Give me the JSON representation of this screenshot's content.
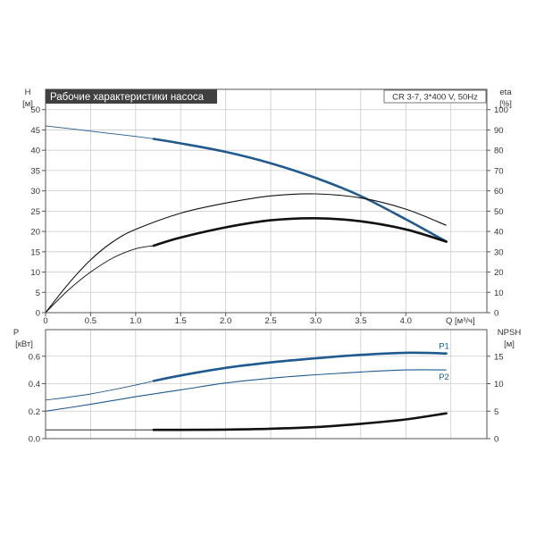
{
  "chart_data": [
    {
      "type": "line",
      "title": "Рабочие характеристики насоса",
      "subtitle": "CR 3-7, 3*400 V, 50Hz",
      "xlabel": "Q [м³/ч]",
      "ylabel": "H",
      "ylabel_unit": "[м]",
      "y2label": "eta",
      "y2label_unit": "[%]",
      "xlim": [
        0,
        4.5
      ],
      "ylim": [
        0,
        50
      ],
      "y2lim": [
        0,
        100
      ],
      "x_ticks": [
        "0",
        "0.5",
        "1.0",
        "1.5",
        "2.0",
        "2.5",
        "3.0",
        "3.5",
        "4.0"
      ],
      "y_ticks": [
        "0",
        "5",
        "10",
        "15",
        "20",
        "25",
        "30",
        "35",
        "40",
        "45",
        "50"
      ],
      "y2_ticks": [
        "0",
        "10",
        "20",
        "30",
        "40",
        "50",
        "60",
        "70",
        "80",
        "90",
        "100"
      ],
      "grid": true,
      "series": [
        {
          "id": "head",
          "axis": "left",
          "color": "#1f5b8f",
          "x": [
            0,
            0.5,
            1.0,
            1.2,
            1.5,
            2.0,
            2.5,
            3.0,
            3.5,
            4.0,
            4.45
          ],
          "y": [
            46.0,
            44.7,
            43.4,
            42.8,
            41.7,
            39.6,
            36.8,
            33.2,
            28.7,
            23.0,
            17.5
          ],
          "bold_from": 1.2
        },
        {
          "id": "eta-upper",
          "axis": "right",
          "color": "#111111",
          "x": [
            0,
            0.25,
            0.5,
            0.75,
            1.0,
            1.5,
            2.0,
            2.5,
            3.0,
            3.5,
            4.0,
            4.45
          ],
          "y": [
            0,
            14,
            26,
            35,
            41,
            49,
            54,
            57.5,
            58.5,
            56.5,
            51,
            43
          ]
        },
        {
          "id": "eta-lower",
          "axis": "right",
          "color": "#111111",
          "x": [
            0,
            0.25,
            0.5,
            0.75,
            1.0,
            1.2,
            1.5,
            2.0,
            2.5,
            3.0,
            3.5,
            4.0,
            4.45
          ],
          "y": [
            0,
            11,
            20,
            27,
            31.5,
            33,
            37,
            42,
            45.5,
            46.5,
            45,
            41,
            35
          ],
          "bold_from": 1.2
        }
      ]
    },
    {
      "type": "line",
      "ylabel": "P",
      "ylabel_unit": "[кВт]",
      "y2label": "NPSH",
      "y2label_unit": "[м]",
      "xlim": [
        0,
        4.5
      ],
      "ylim": [
        0,
        0.8
      ],
      "y2lim": [
        0,
        20
      ],
      "y_ticks": [
        "0.0",
        "0.2",
        "0.4",
        "0.6"
      ],
      "y2_ticks": [
        "0",
        "5",
        "10",
        "15"
      ],
      "grid": true,
      "series": [
        {
          "name": "P1",
          "axis": "left",
          "color": "#1f5b8f",
          "x": [
            0,
            0.5,
            1.0,
            1.2,
            1.5,
            2.0,
            2.5,
            3.0,
            3.5,
            4.0,
            4.45
          ],
          "y": [
            0.28,
            0.325,
            0.39,
            0.42,
            0.46,
            0.515,
            0.555,
            0.585,
            0.61,
            0.625,
            0.62
          ],
          "bold_from": 1.2
        },
        {
          "name": "P2",
          "axis": "left",
          "color": "#1f5b8f",
          "x": [
            0,
            0.5,
            1.0,
            1.5,
            2.0,
            2.5,
            3.0,
            3.5,
            4.0,
            4.45
          ],
          "y": [
            0.2,
            0.25,
            0.305,
            0.355,
            0.405,
            0.44,
            0.465,
            0.485,
            0.5,
            0.5
          ]
        },
        {
          "id": "npsh",
          "axis": "right",
          "color": "#111111",
          "x": [
            0,
            1.2,
            1.5,
            2.0,
            2.5,
            3.0,
            3.5,
            4.0,
            4.45
          ],
          "y": [
            1.6,
            1.6,
            1.6,
            1.65,
            1.8,
            2.1,
            2.7,
            3.5,
            4.6
          ],
          "bold_from": 1.2
        }
      ]
    }
  ]
}
